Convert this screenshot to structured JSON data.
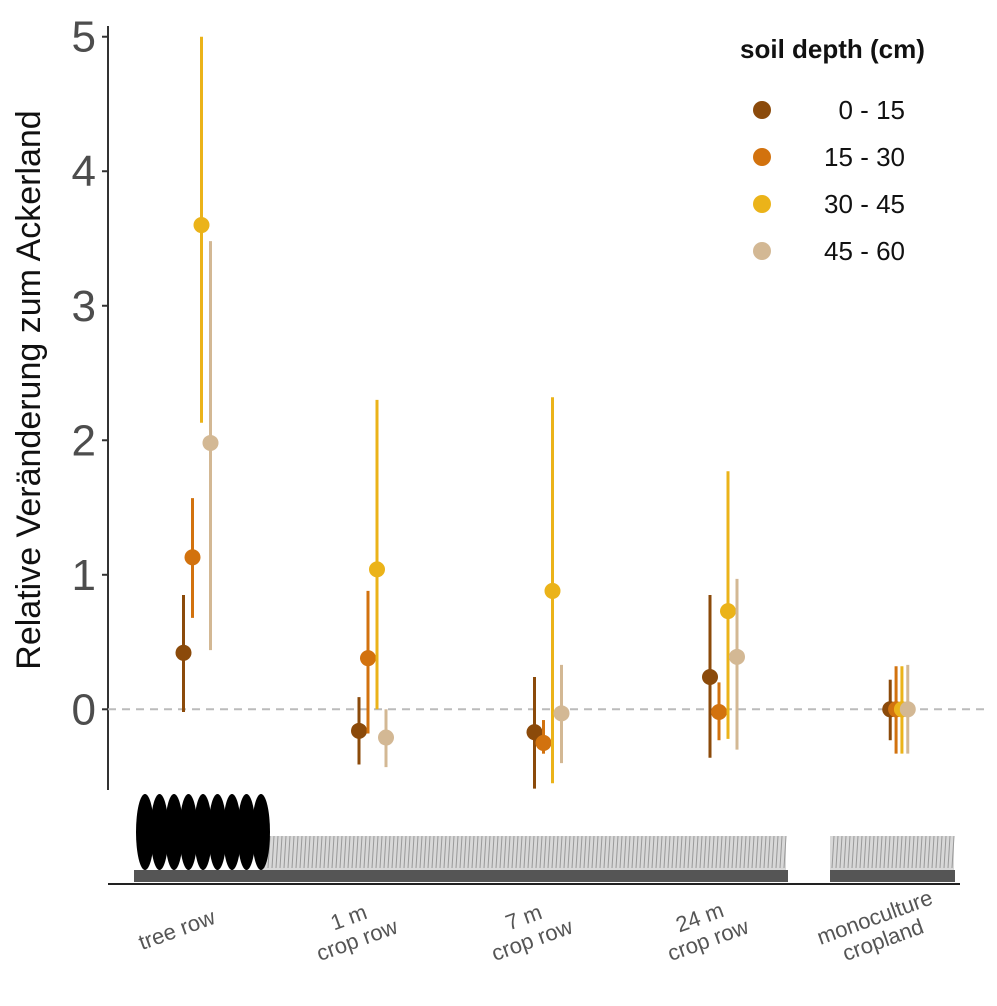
{
  "chart_data": {
    "type": "pointrange",
    "y_label": "Relative Veränderung zum Ackerland",
    "legend_title": "soil depth (cm)",
    "categories": [
      "tree row",
      "1 m\ncrop row",
      "7 m\ncrop row",
      "24 m\ncrop row",
      "monoculture\ncropland"
    ],
    "ylim": [
      -0.6,
      5.05
    ],
    "yticks": [
      0,
      1,
      2,
      3,
      4,
      5
    ],
    "reference_line": 0,
    "series": [
      {
        "name": "0 - 15",
        "color": "#8b4a0a",
        "values": [
          0.42,
          -0.16,
          -0.17,
          0.24,
          0
        ],
        "low": [
          -0.02,
          -0.41,
          -0.59,
          -0.36,
          -0.23
        ],
        "high": [
          0.85,
          0.09,
          0.24,
          0.85,
          0.22
        ]
      },
      {
        "name": "15 - 30",
        "color": "#d2720e",
        "values": [
          1.13,
          0.38,
          -0.25,
          -0.02,
          0
        ],
        "low": [
          0.68,
          -0.18,
          -0.33,
          -0.23,
          -0.33
        ],
        "high": [
          1.57,
          0.88,
          -0.08,
          0.2,
          0.32
        ]
      },
      {
        "name": "30 - 45",
        "color": "#ebb319",
        "values": [
          3.6,
          1.04,
          0.88,
          0.73,
          0
        ],
        "low": [
          2.13,
          0.0,
          -0.55,
          -0.22,
          -0.33
        ],
        "high": [
          5.0,
          2.3,
          2.32,
          1.77,
          0.32
        ]
      },
      {
        "name": "45 - 60",
        "color": "#d3b894",
        "values": [
          1.98,
          -0.21,
          -0.03,
          0.39,
          0
        ],
        "low": [
          0.44,
          -0.43,
          -0.4,
          -0.3,
          -0.33
        ],
        "high": [
          3.48,
          0.0,
          0.33,
          0.97,
          0.33
        ]
      }
    ]
  }
}
